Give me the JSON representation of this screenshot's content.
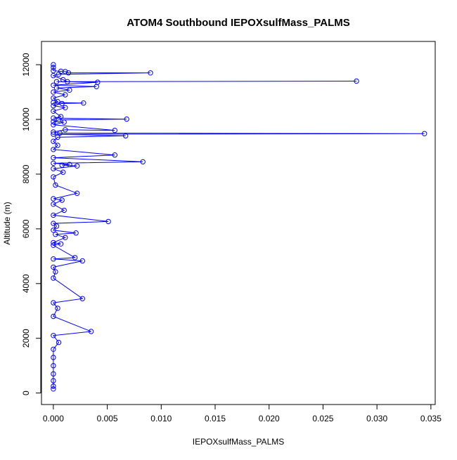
{
  "chart_data": {
    "type": "scatter",
    "title": "ATOM4 Southbound IEPOXsulfMass_PALMS",
    "xlabel": "IEPOXsulfMass_PALMS",
    "ylabel": "Altitude (m)",
    "xlim": [
      -0.0011,
      0.0354
    ],
    "ylim": [
      -420,
      12850
    ],
    "xticks": [
      0.0,
      0.005,
      0.01,
      0.015,
      0.02,
      0.025,
      0.03,
      0.035
    ],
    "xtick_labels": [
      "0.000",
      "0.005",
      "0.010",
      "0.015",
      "0.020",
      "0.025",
      "0.030",
      "0.035"
    ],
    "yticks": [
      0,
      2000,
      4000,
      6000,
      8000,
      10000,
      12000
    ],
    "ytick_labels": [
      "0",
      "2000",
      "4000",
      "6000",
      "8000",
      "10000",
      "12000"
    ],
    "grid": false,
    "series": [
      {
        "color": "#0000ff",
        "marker": "open-circle",
        "connected": true,
        "points": [
          [
            0.0,
            12000
          ],
          [
            0.0,
            11900
          ],
          [
            0.0,
            11780
          ],
          [
            0.0007,
            11760
          ],
          [
            0.0011,
            11750
          ],
          [
            0.0014,
            11700
          ],
          [
            0.009,
            11700
          ],
          [
            0.0005,
            11650
          ],
          [
            0.0,
            11600
          ],
          [
            0.0009,
            11450
          ],
          [
            0.0013,
            11380
          ],
          [
            0.0281,
            11400
          ],
          [
            0.0003,
            11380
          ],
          [
            0.0041,
            11360
          ],
          [
            0.0,
            11250
          ],
          [
            0.004,
            11200
          ],
          [
            0.0003,
            11150
          ],
          [
            0.0015,
            11070
          ],
          [
            0.0,
            11000
          ],
          [
            0.0011,
            10900
          ],
          [
            0.0,
            10780
          ],
          [
            0.0004,
            10650
          ],
          [
            0.0,
            10620
          ],
          [
            0.0028,
            10600
          ],
          [
            0.0008,
            10580
          ],
          [
            0.0,
            10500
          ],
          [
            0.0011,
            10430
          ],
          [
            0.0,
            10300
          ],
          [
            0.0007,
            10100
          ],
          [
            0.0,
            10050
          ],
          [
            0.0068,
            10010
          ],
          [
            0.0005,
            9980
          ],
          [
            0.0,
            9920
          ],
          [
            0.001,
            9900
          ],
          [
            0.0,
            9800
          ],
          [
            0.0057,
            9600
          ],
          [
            0.0011,
            9620
          ],
          [
            0.0,
            9540
          ],
          [
            0.0006,
            9500
          ],
          [
            0.0344,
            9480
          ],
          [
            0.0,
            9460
          ],
          [
            0.0067,
            9400
          ],
          [
            0.0004,
            9350
          ],
          [
            0.0,
            9200
          ],
          [
            0.0004,
            9050
          ],
          [
            0.0,
            8900
          ],
          [
            0.0057,
            8700
          ],
          [
            0.0,
            8600
          ],
          [
            0.0083,
            8450
          ],
          [
            0.0,
            8400
          ],
          [
            0.0015,
            8350
          ],
          [
            0.0008,
            8330
          ],
          [
            0.0022,
            8300
          ],
          [
            0.0,
            8200
          ],
          [
            0.0009,
            8070
          ],
          [
            0.0,
            7900
          ],
          [
            0.0002,
            7600
          ],
          [
            0.0022,
            7300
          ],
          [
            0.0,
            7100
          ],
          [
            0.0008,
            7050
          ],
          [
            0.0,
            6900
          ],
          [
            0.001,
            6680
          ],
          [
            0.0,
            6500
          ],
          [
            0.0051,
            6270
          ],
          [
            0.0,
            6200
          ],
          [
            0.0003,
            6100
          ],
          [
            0.0,
            5950
          ],
          [
            0.0021,
            5850
          ],
          [
            0.0002,
            5800
          ],
          [
            0.0011,
            5680
          ],
          [
            0.0,
            5500
          ],
          [
            0.0007,
            5450
          ],
          [
            0.0,
            5400
          ],
          [
            0.002,
            4950
          ],
          [
            0.0,
            4900
          ],
          [
            0.0027,
            4830
          ],
          [
            0.0,
            4600
          ],
          [
            0.0002,
            4430
          ],
          [
            0.0,
            4200
          ],
          [
            0.0027,
            3450
          ],
          [
            0.0,
            3300
          ],
          [
            0.0004,
            3100
          ],
          [
            0.0,
            2800
          ],
          [
            0.0035,
            2250
          ],
          [
            0.0,
            2100
          ],
          [
            0.0005,
            1850
          ],
          [
            0.0,
            1600
          ],
          [
            0.0,
            1300
          ],
          [
            0.0,
            1000
          ],
          [
            0.0,
            700
          ],
          [
            0.0,
            450
          ],
          [
            0.0,
            250
          ],
          [
            0.0,
            150
          ]
        ]
      }
    ]
  }
}
